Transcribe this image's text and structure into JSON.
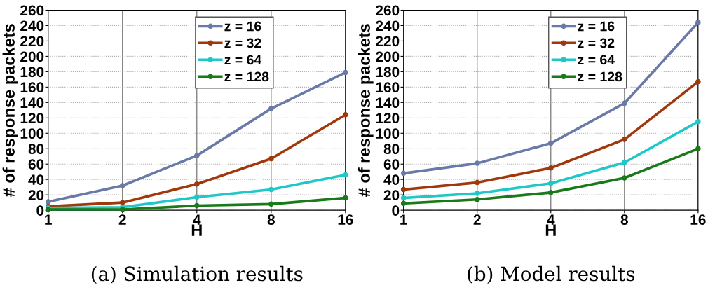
{
  "chart_data": [
    {
      "type": "line",
      "xlabel": "H",
      "ylabel": "# of response packets",
      "x": [
        1,
        2,
        4,
        8,
        16
      ],
      "log": "x",
      "xlim": [
        1,
        16
      ],
      "xticks": [
        1,
        2,
        4,
        8,
        16
      ],
      "ylim": [
        0,
        260
      ],
      "yticks": [
        0,
        20,
        40,
        60,
        80,
        100,
        120,
        140,
        160,
        180,
        200,
        220,
        240,
        260
      ],
      "grid": true,
      "legend": "top right",
      "marker": "circle",
      "line_style": "solid",
      "series": [
        {
          "name": "z = 16",
          "color": "#6a7aa8",
          "values": [
            11,
            32,
            71,
            132,
            179
          ]
        },
        {
          "name": "z = 32",
          "color": "#a0380c",
          "values": [
            5,
            10,
            34,
            67,
            124
          ]
        },
        {
          "name": "z = 64",
          "color": "#1ec8c8",
          "values": [
            3,
            4,
            17,
            27,
            46
          ]
        },
        {
          "name": "z = 128",
          "color": "#1a7a1a",
          "values": [
            1,
            1,
            6,
            8,
            16
          ]
        }
      ],
      "annotations": [
        "(a) Simulation results"
      ]
    },
    {
      "type": "line",
      "xlabel": "H",
      "ylabel": "# of response packets",
      "x": [
        1,
        2,
        4,
        8,
        16
      ],
      "log": "x",
      "xlim": [
        1,
        16
      ],
      "xticks": [
        1,
        2,
        4,
        8,
        16
      ],
      "ylim": [
        0,
        260
      ],
      "yticks": [
        0,
        20,
        40,
        60,
        80,
        100,
        120,
        140,
        160,
        180,
        200,
        220,
        240,
        260
      ],
      "grid": true,
      "legend": "top right",
      "marker": "circle",
      "line_style": "solid",
      "series": [
        {
          "name": "z = 16",
          "color": "#6a7aa8",
          "values": [
            48,
            61,
            87,
            139,
            244
          ]
        },
        {
          "name": "z = 32",
          "color": "#a0380c",
          "values": [
            27,
            36,
            55,
            92,
            167
          ]
        },
        {
          "name": "z = 64",
          "color": "#1ec8c8",
          "values": [
            16,
            22,
            35,
            62,
            115
          ]
        },
        {
          "name": "z = 128",
          "color": "#1a7a1a",
          "values": [
            9,
            14,
            23,
            42,
            80
          ]
        }
      ],
      "annotations": [
        "(b) Model results"
      ]
    }
  ]
}
